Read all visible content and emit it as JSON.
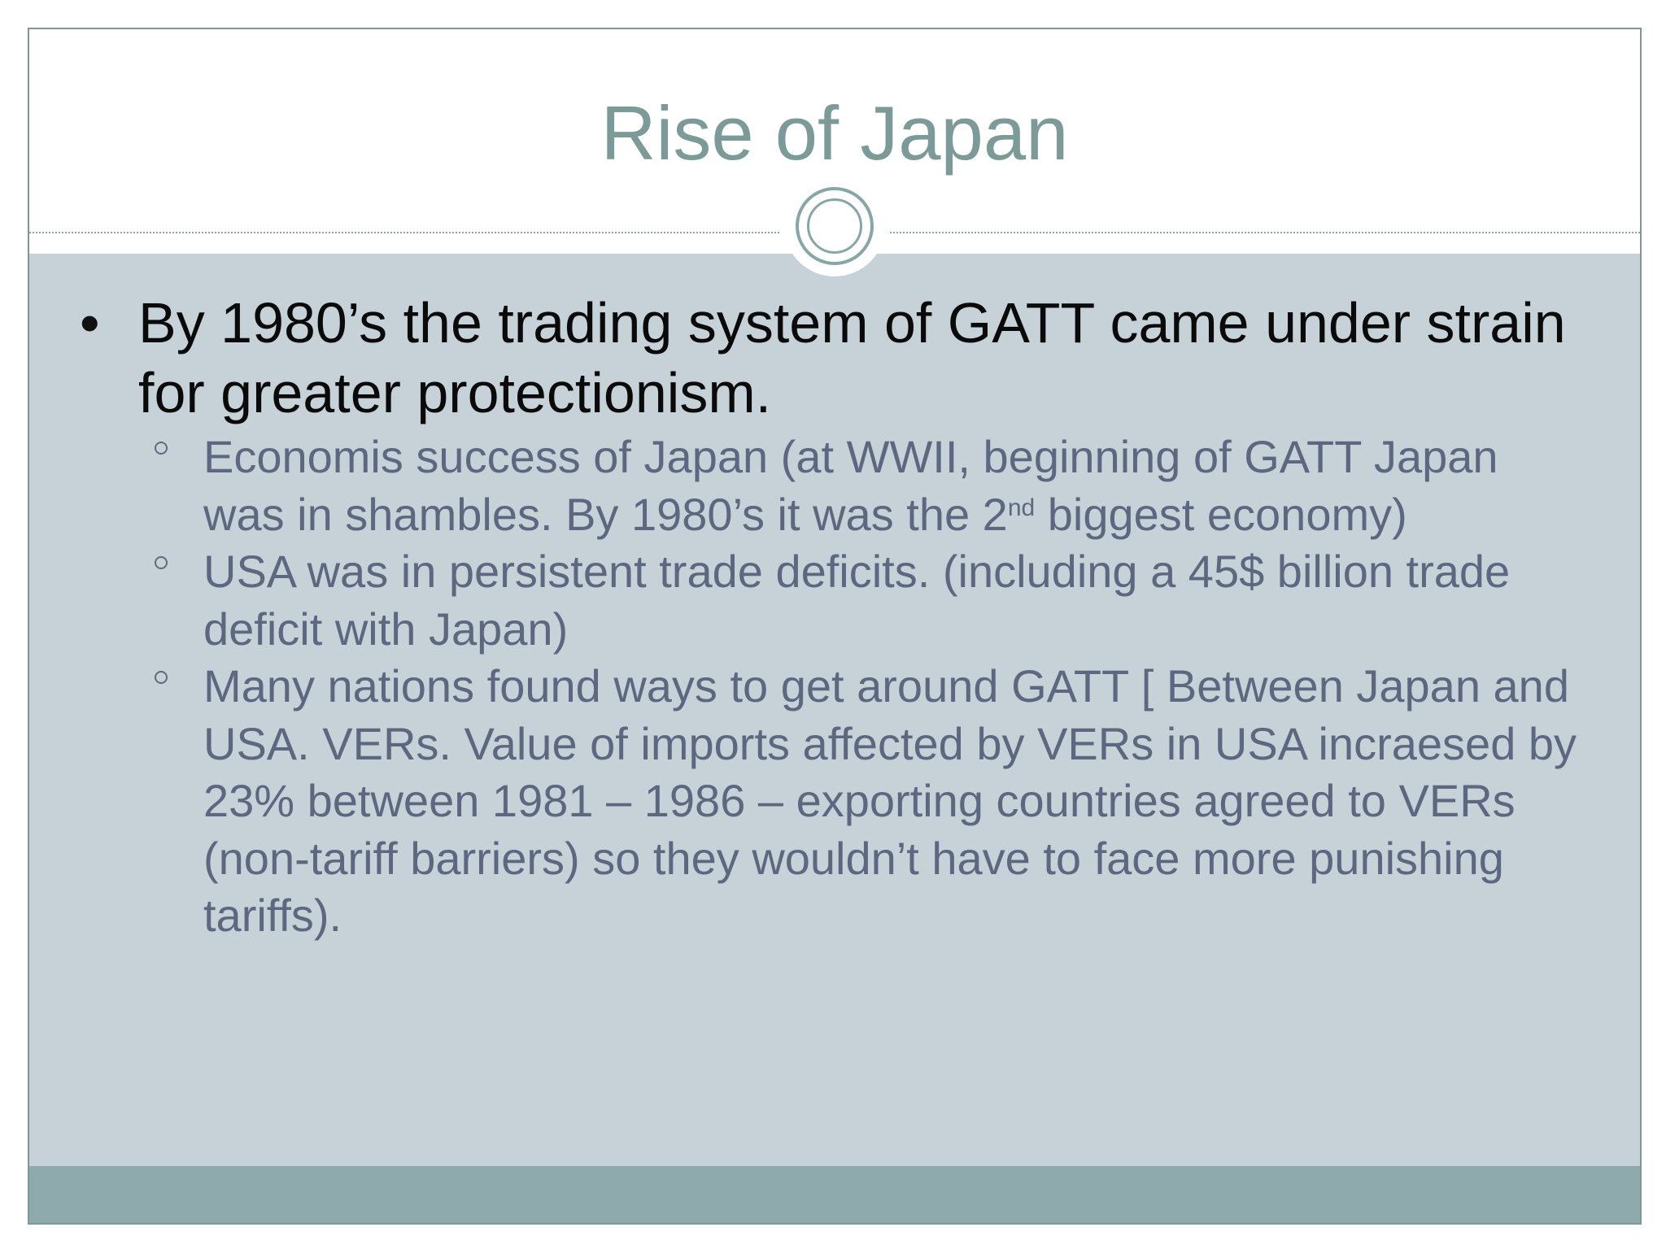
{
  "slide": {
    "title": "Rise of Japan",
    "bullet": {
      "text": "By 1980’s the trading system of GATT came under strain for greater protectionism."
    },
    "sub_bullets": [
      {
        "text_before": "Economis success of Japan (at WWII, beginning of GATT Japan was in shambles. By 1980’s it was the 2",
        "superscript": "nd",
        "text_after": " biggest economy)"
      },
      {
        "text": "USA was in persistent trade deficits. (including a 45$ billion trade deficit with Japan)"
      },
      {
        "text": "Many nations found ways to get around GATT [ Between Japan and USA. VERs. Value of imports affected by VERs in USA incraesed by 23% between 1981 – 1986 – exporting countries agreed to VERs (non-tariff barriers) so they wouldn’t have to face more punishing tariffs)."
      }
    ]
  },
  "colors": {
    "title": "#7c9a98",
    "body_background": "#c6d1d8",
    "footer_band": "#8eaaad",
    "sub_text": "#5d6880",
    "main_text": "#0a0a0a"
  }
}
